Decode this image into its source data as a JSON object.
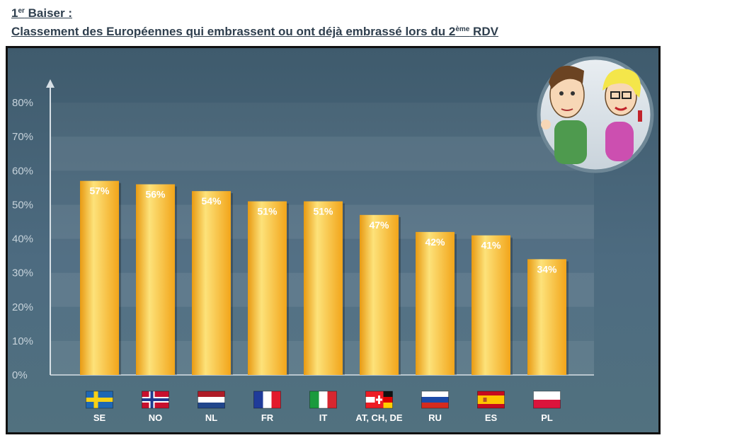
{
  "header": {
    "title1_main": "1",
    "title1_sup": "er",
    "title1_rest": " Baiser :",
    "title2_main": "Classement des Européennes qui embrassent ou ont déjà embrassé lors du 2",
    "title2_sup": "ème",
    "title2_rest": " RDV"
  },
  "chart_data": {
    "type": "bar",
    "categories": [
      "SE",
      "NO",
      "NL",
      "FR",
      "IT",
      "AT, CH, DE",
      "RU",
      "ES",
      "PL"
    ],
    "values": [
      57,
      56,
      54,
      51,
      51,
      47,
      42,
      41,
      34
    ],
    "data_labels": [
      "57%",
      "56%",
      "54%",
      "51%",
      "51%",
      "47%",
      "42%",
      "41%",
      "34%"
    ],
    "yticks": [
      "0%",
      "10%",
      "20%",
      "30%",
      "40%",
      "50%",
      "60%",
      "70%",
      "80%"
    ],
    "ylim": [
      0,
      80
    ],
    "grid": true,
    "colors": {
      "bar": "#f7b928",
      "bar_light": "#fde27a",
      "background": "#4a6679",
      "text": "#ffffff"
    },
    "flags": [
      "sweden-flag-icon",
      "norway-flag-icon",
      "netherlands-flag-icon",
      "france-flag-icon",
      "italy-flag-icon",
      "austria-switzerland-germany-flag-icon",
      "russia-flag-icon",
      "spain-flag-icon",
      "poland-flag-icon"
    ]
  }
}
